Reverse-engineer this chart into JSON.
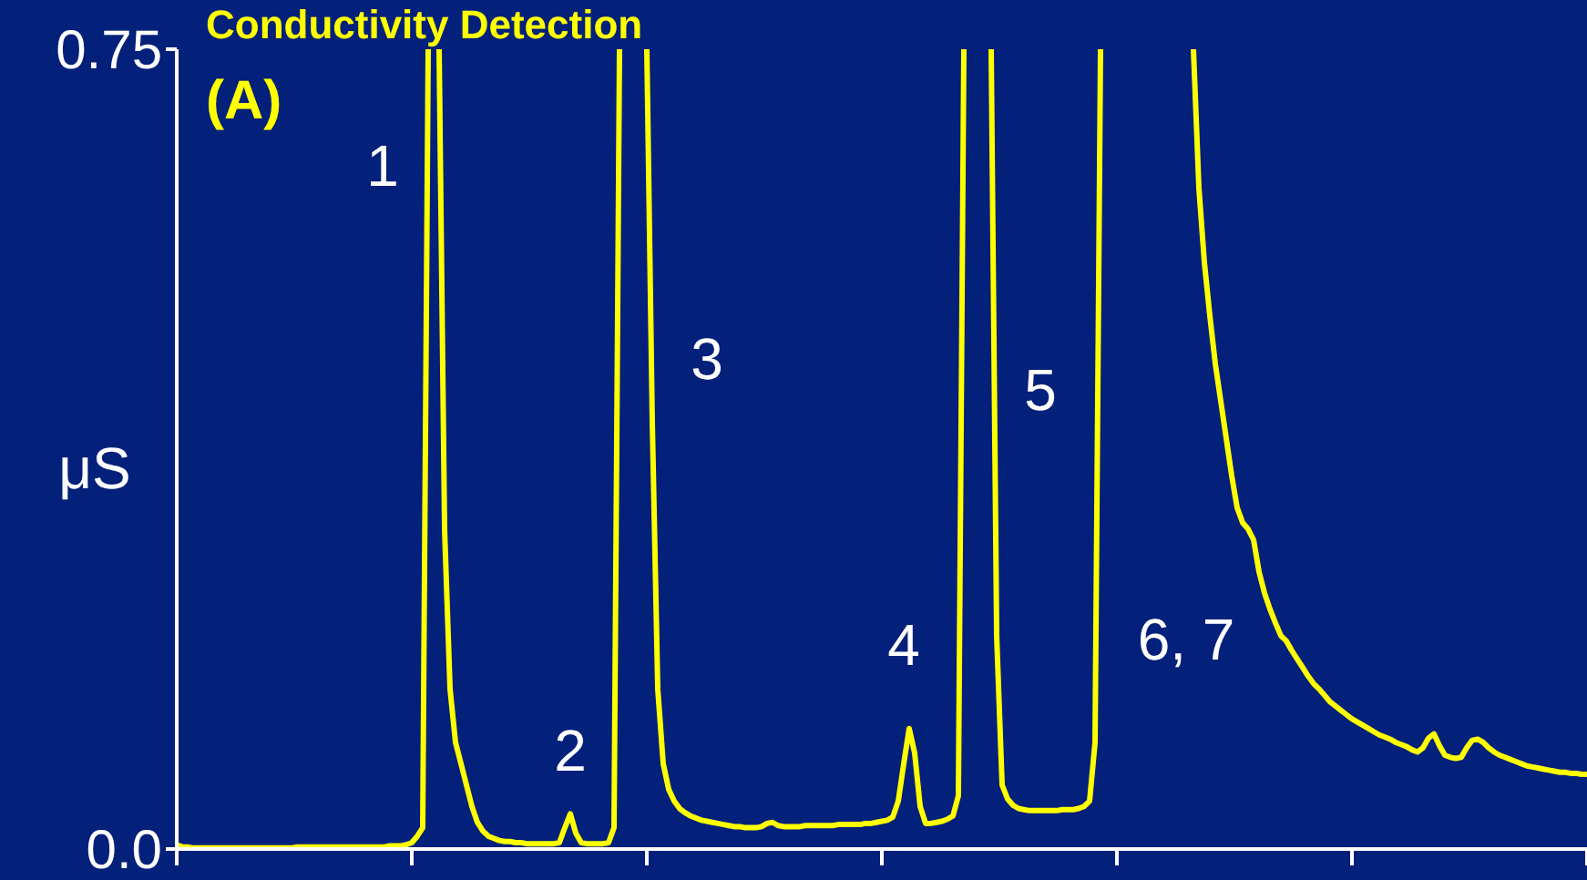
{
  "chart_data": {
    "type": "line",
    "title": "Conductivity Detection",
    "ylabel": "μS",
    "annotations": [
      "(A)",
      "1",
      "2",
      "3",
      "4",
      "5",
      "6, 7"
    ],
    "categories": [
      null,
      null,
      null,
      null,
      null,
      null,
      null,
      null,
      null,
      null,
      null,
      null,
      null,
      null,
      null,
      null,
      null,
      null,
      null,
      null,
      null,
      null,
      null,
      null,
      null,
      null,
      null,
      null,
      null,
      null,
      null,
      null,
      null,
      null,
      null,
      null,
      null,
      null,
      null,
      null,
      null,
      null,
      null,
      null,
      null,
      null,
      null,
      null,
      null,
      null,
      null,
      null,
      null,
      null,
      null,
      null,
      null,
      null,
      null,
      null,
      null,
      null,
      null,
      null,
      null,
      null,
      null,
      null,
      null,
      null,
      null,
      null,
      null,
      null,
      null,
      null,
      null,
      null,
      null,
      null,
      null,
      null,
      null,
      null,
      null,
      null,
      null,
      null,
      null,
      null,
      null,
      null,
      null,
      null,
      null,
      null,
      null,
      null,
      null,
      null,
      null,
      null,
      null,
      null,
      null,
      null,
      null,
      null,
      null,
      null,
      null,
      null,
      null,
      null,
      null,
      null,
      null,
      null,
      null,
      null,
      null,
      null,
      null,
      null,
      null,
      null,
      null,
      null,
      null,
      null,
      null,
      null,
      null,
      null,
      null,
      null,
      null,
      null,
      null,
      null,
      null,
      null,
      null,
      null,
      null,
      null,
      null,
      null,
      null,
      null,
      null,
      null,
      null,
      null,
      null,
      null,
      null,
      null,
      null,
      null,
      null,
      null,
      null,
      null,
      null,
      null,
      null,
      null,
      null,
      null,
      null,
      null,
      null,
      null,
      null,
      null,
      null,
      null,
      null,
      null,
      null,
      null,
      null,
      null,
      null,
      null,
      null,
      null,
      null,
      null,
      null,
      null,
      null,
      null,
      null,
      null,
      null,
      null,
      null,
      null,
      null,
      null,
      null,
      null,
      null,
      null,
      null,
      null,
      null,
      null,
      null,
      null,
      null,
      null,
      null,
      null,
      null,
      null,
      null,
      null,
      null,
      null,
      null,
      null,
      null,
      null,
      null,
      null,
      null,
      null,
      null,
      null,
      null,
      null,
      null,
      null,
      null,
      null,
      null,
      null,
      null,
      null,
      null,
      null,
      null,
      null,
      null,
      null,
      null,
      null,
      null,
      null,
      null,
      null,
      null,
      null,
      null,
      null,
      null
    ],
    "series": [
      {
        "color": "#ffff00",
        "values": [
          0.004,
          0.002,
          0.002,
          0.001,
          0.001,
          0.001,
          0.001,
          0.001,
          0.001,
          0.001,
          0.001,
          0.001,
          0.001,
          0.001,
          0.001,
          0.001,
          0.001,
          0.001,
          0.001,
          0.001,
          0.001,
          0.001,
          0.002,
          0.002,
          0.002,
          0.002,
          0.002,
          0.002,
          0.002,
          0.002,
          0.002,
          0.002,
          0.002,
          0.002,
          0.002,
          0.002,
          0.002,
          0.002,
          0.002,
          0.003,
          0.003,
          0.003,
          0.004,
          0.006,
          0.012,
          0.02,
          0.75,
          null,
          0.75,
          0.3,
          0.15,
          0.1,
          0.08,
          0.06,
          0.04,
          0.025,
          0.017,
          0.012,
          0.01,
          0.008,
          0.007,
          0.007,
          0.006,
          0.006,
          0.005,
          0.005,
          0.005,
          0.005,
          0.005,
          0.005,
          0.006,
          0.02,
          0.033,
          0.015,
          0.006,
          0.005,
          0.005,
          0.005,
          0.005,
          0.006,
          0.02,
          0.75,
          null,
          null,
          null,
          null,
          0.75,
          0.4,
          0.15,
          0.08,
          0.056,
          0.045,
          0.038,
          0.034,
          0.031,
          0.029,
          0.027,
          0.026,
          0.025,
          0.024,
          0.023,
          0.022,
          0.021,
          0.021,
          0.02,
          0.02,
          0.02,
          0.021,
          0.024,
          0.025,
          0.022,
          0.021,
          0.021,
          0.021,
          0.021,
          0.022,
          0.022,
          0.022,
          0.022,
          0.022,
          0.022,
          0.023,
          0.023,
          0.023,
          0.023,
          0.023,
          0.024,
          0.024,
          0.025,
          0.026,
          0.027,
          0.03,
          0.045,
          0.08,
          0.113,
          0.09,
          0.04,
          0.024,
          0.024,
          0.025,
          0.026,
          0.028,
          0.031,
          0.05,
          0.75,
          null,
          null,
          null,
          null,
          0.75,
          0.2,
          0.06,
          0.047,
          0.041,
          0.038,
          0.037,
          0.036,
          0.036,
          0.036,
          0.036,
          0.036,
          0.036,
          0.037,
          0.037,
          0.037,
          0.038,
          0.04,
          0.045,
          0.1,
          0.75,
          null,
          null,
          null,
          null,
          null,
          null,
          null,
          null,
          null,
          null,
          null,
          null,
          null,
          null,
          null,
          null,
          0.75,
          0.62,
          0.55,
          0.5,
          0.455,
          0.42,
          0.385,
          0.35,
          0.32,
          0.306,
          0.3,
          0.29,
          0.26,
          0.24,
          0.225,
          0.212,
          0.2,
          0.195,
          0.186,
          0.178,
          0.17,
          0.162,
          0.155,
          0.15,
          0.144,
          0.138,
          0.134,
          0.13,
          0.126,
          0.122,
          0.119,
          0.116,
          0.113,
          0.11,
          0.107,
          0.105,
          0.103,
          0.1,
          0.098,
          0.096,
          0.093,
          0.091,
          0.095,
          0.104,
          0.108,
          0.097,
          0.088,
          0.086,
          0.085,
          0.086,
          0.095,
          0.102,
          0.103,
          0.1,
          0.095,
          0.091,
          0.088,
          0.086,
          0.084,
          0.082,
          0.08,
          0.078,
          0.077,
          0.076,
          0.075,
          0.074,
          0.073,
          0.072,
          0.072,
          0.071,
          0.071,
          0.07,
          0.07
        ]
      }
    ],
    "ylim": [
      0,
      0.75
    ],
    "yticks": [
      {
        "value": 0,
        "label": "0.0"
      },
      0.75
    ],
    "line_style": "solid",
    "legend": false,
    "grid": false
  }
}
